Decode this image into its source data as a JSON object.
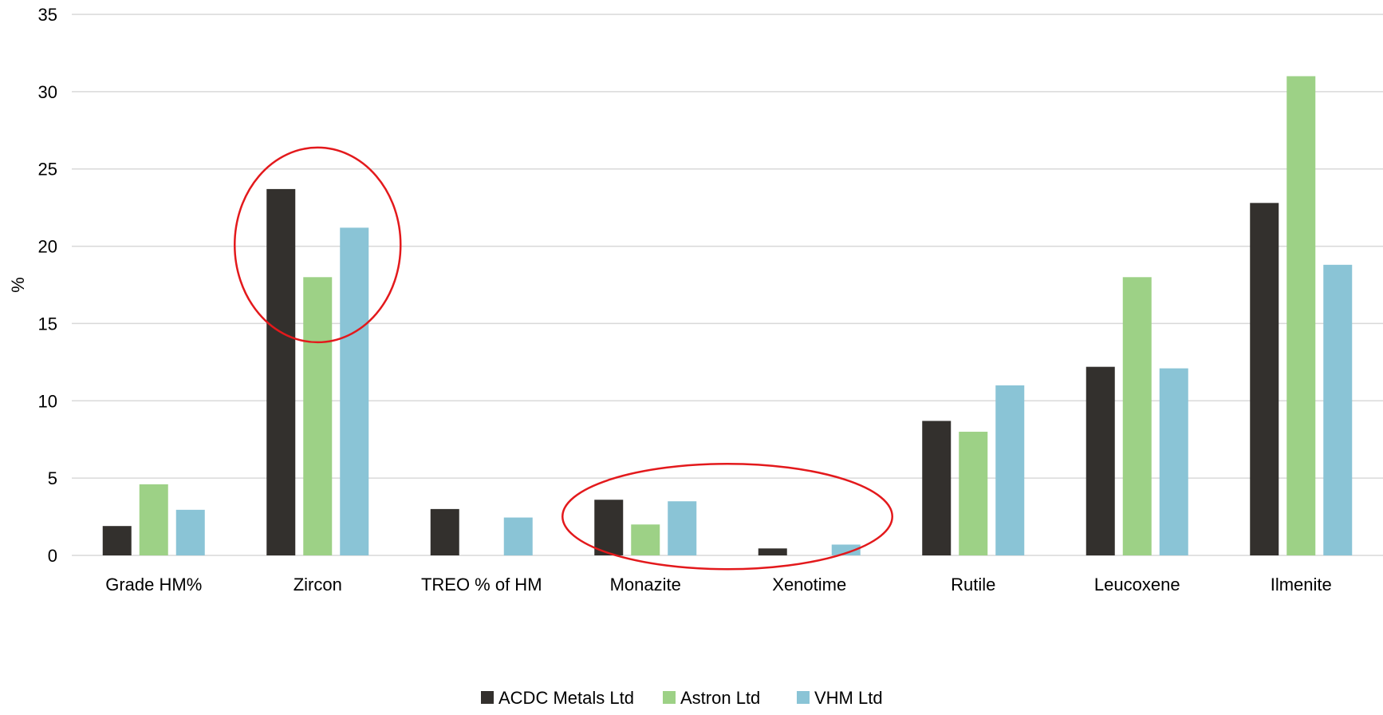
{
  "chart_data": {
    "type": "bar",
    "title": "",
    "xlabel": "",
    "ylabel": "%",
    "ylim": [
      0,
      35
    ],
    "yticks": [
      0,
      5,
      10,
      15,
      20,
      25,
      30,
      35
    ],
    "grid": true,
    "legend_position": "bottom-center",
    "categories": [
      "Grade HM%",
      "Zircon",
      "TREO % of HM",
      "Monazite",
      "Xenotime",
      "Rutile",
      "Leucoxene",
      "Ilmenite"
    ],
    "series": [
      {
        "name": "ACDC Metals Ltd",
        "color": "#33302d",
        "values": [
          1.9,
          23.7,
          3.0,
          3.6,
          0.45,
          8.7,
          12.2,
          22.8
        ]
      },
      {
        "name": "Astron Ltd",
        "color": "#9dd186",
        "values": [
          4.6,
          18.0,
          null,
          2.0,
          null,
          8.0,
          18.0,
          31.0
        ]
      },
      {
        "name": "VHM Ltd",
        "color": "#8ac4d6",
        "values": [
          2.95,
          21.2,
          2.45,
          3.5,
          0.7,
          11.0,
          12.1,
          18.8
        ]
      }
    ],
    "annotations": [
      {
        "type": "ellipse",
        "color": "#e3191c",
        "around_categories": [
          "Zircon"
        ]
      },
      {
        "type": "ellipse",
        "color": "#e3191c",
        "around_categories": [
          "Monazite",
          "Xenotime"
        ]
      }
    ]
  }
}
